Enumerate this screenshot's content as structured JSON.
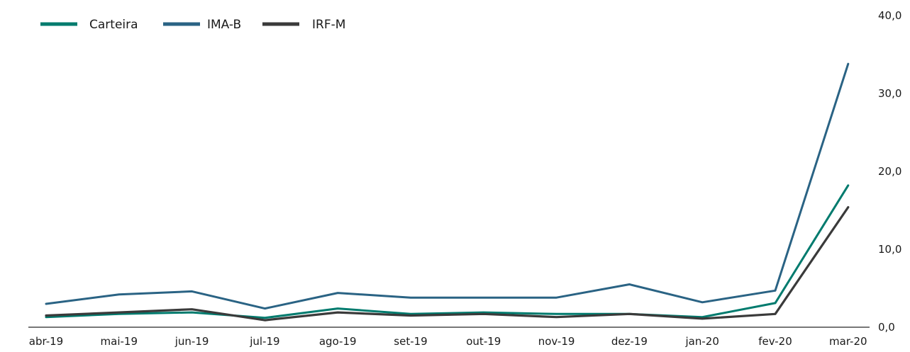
{
  "chart_data": {
    "type": "line",
    "categories": [
      "abr-19",
      "mai-19",
      "jun-19",
      "jul-19",
      "ago-19",
      "set-19",
      "out-19",
      "nov-19",
      "dez-19",
      "jan-20",
      "fev-20",
      "mar-20"
    ],
    "series": [
      {
        "name": "Carteira",
        "color": "#007b6e",
        "values": [
          1.3,
          1.7,
          1.9,
          1.2,
          2.4,
          1.7,
          1.9,
          1.7,
          1.7,
          1.3,
          3.1,
          18.2
        ]
      },
      {
        "name": "IMA-B",
        "color": "#2a6384",
        "values": [
          3.0,
          4.2,
          4.6,
          2.4,
          4.4,
          3.8,
          3.8,
          3.8,
          5.5,
          3.2,
          4.7,
          33.8
        ]
      },
      {
        "name": "IRF-M",
        "color": "#3a3a3a",
        "values": [
          1.5,
          1.9,
          2.3,
          0.9,
          1.9,
          1.5,
          1.7,
          1.3,
          1.7,
          1.1,
          1.7,
          15.4
        ]
      }
    ],
    "y_ticks": [
      "0,0",
      "10,0",
      "20,0",
      "30,0",
      "40,0"
    ],
    "ylim": [
      0,
      40
    ],
    "y_axis_position": "right",
    "legend_position": "top-left",
    "grid": false
  }
}
